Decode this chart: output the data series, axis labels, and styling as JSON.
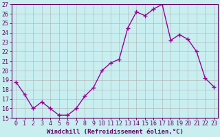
{
  "x": [
    0,
    1,
    2,
    3,
    4,
    5,
    6,
    7,
    8,
    9,
    10,
    11,
    12,
    13,
    14,
    15,
    16,
    17,
    18,
    19,
    20,
    21,
    22,
    23
  ],
  "y": [
    18.8,
    17.5,
    16.0,
    16.7,
    16.0,
    15.3,
    15.3,
    16.0,
    17.3,
    18.2,
    20.0,
    20.8,
    21.2,
    24.5,
    26.2,
    25.8,
    26.5,
    27.0,
    23.2,
    23.8,
    23.3,
    22.0,
    19.2,
    18.3
  ],
  "line_color": "#990099",
  "marker": "+",
  "markersize": 4,
  "markeredgewidth": 1.0,
  "xlabel": "Windchill (Refroidissement éolien,°C)",
  "ylabel": "",
  "title": "",
  "xlim": [
    -0.5,
    23.5
  ],
  "ylim": [
    15,
    27
  ],
  "yticks": [
    15,
    16,
    17,
    18,
    19,
    20,
    21,
    22,
    23,
    24,
    25,
    26,
    27
  ],
  "xticks": [
    0,
    1,
    2,
    3,
    4,
    5,
    6,
    7,
    8,
    9,
    10,
    11,
    12,
    13,
    14,
    15,
    16,
    17,
    18,
    19,
    20,
    21,
    22,
    23
  ],
  "bg_color": "#c8eef0",
  "grid_color": "#b0b0b0",
  "axis_color": "#660066",
  "tick_label_color": "#660066",
  "xlabel_color": "#660066",
  "xlabel_fontsize": 6.5,
  "tick_fontsize": 6.0,
  "linewidth": 1.0
}
